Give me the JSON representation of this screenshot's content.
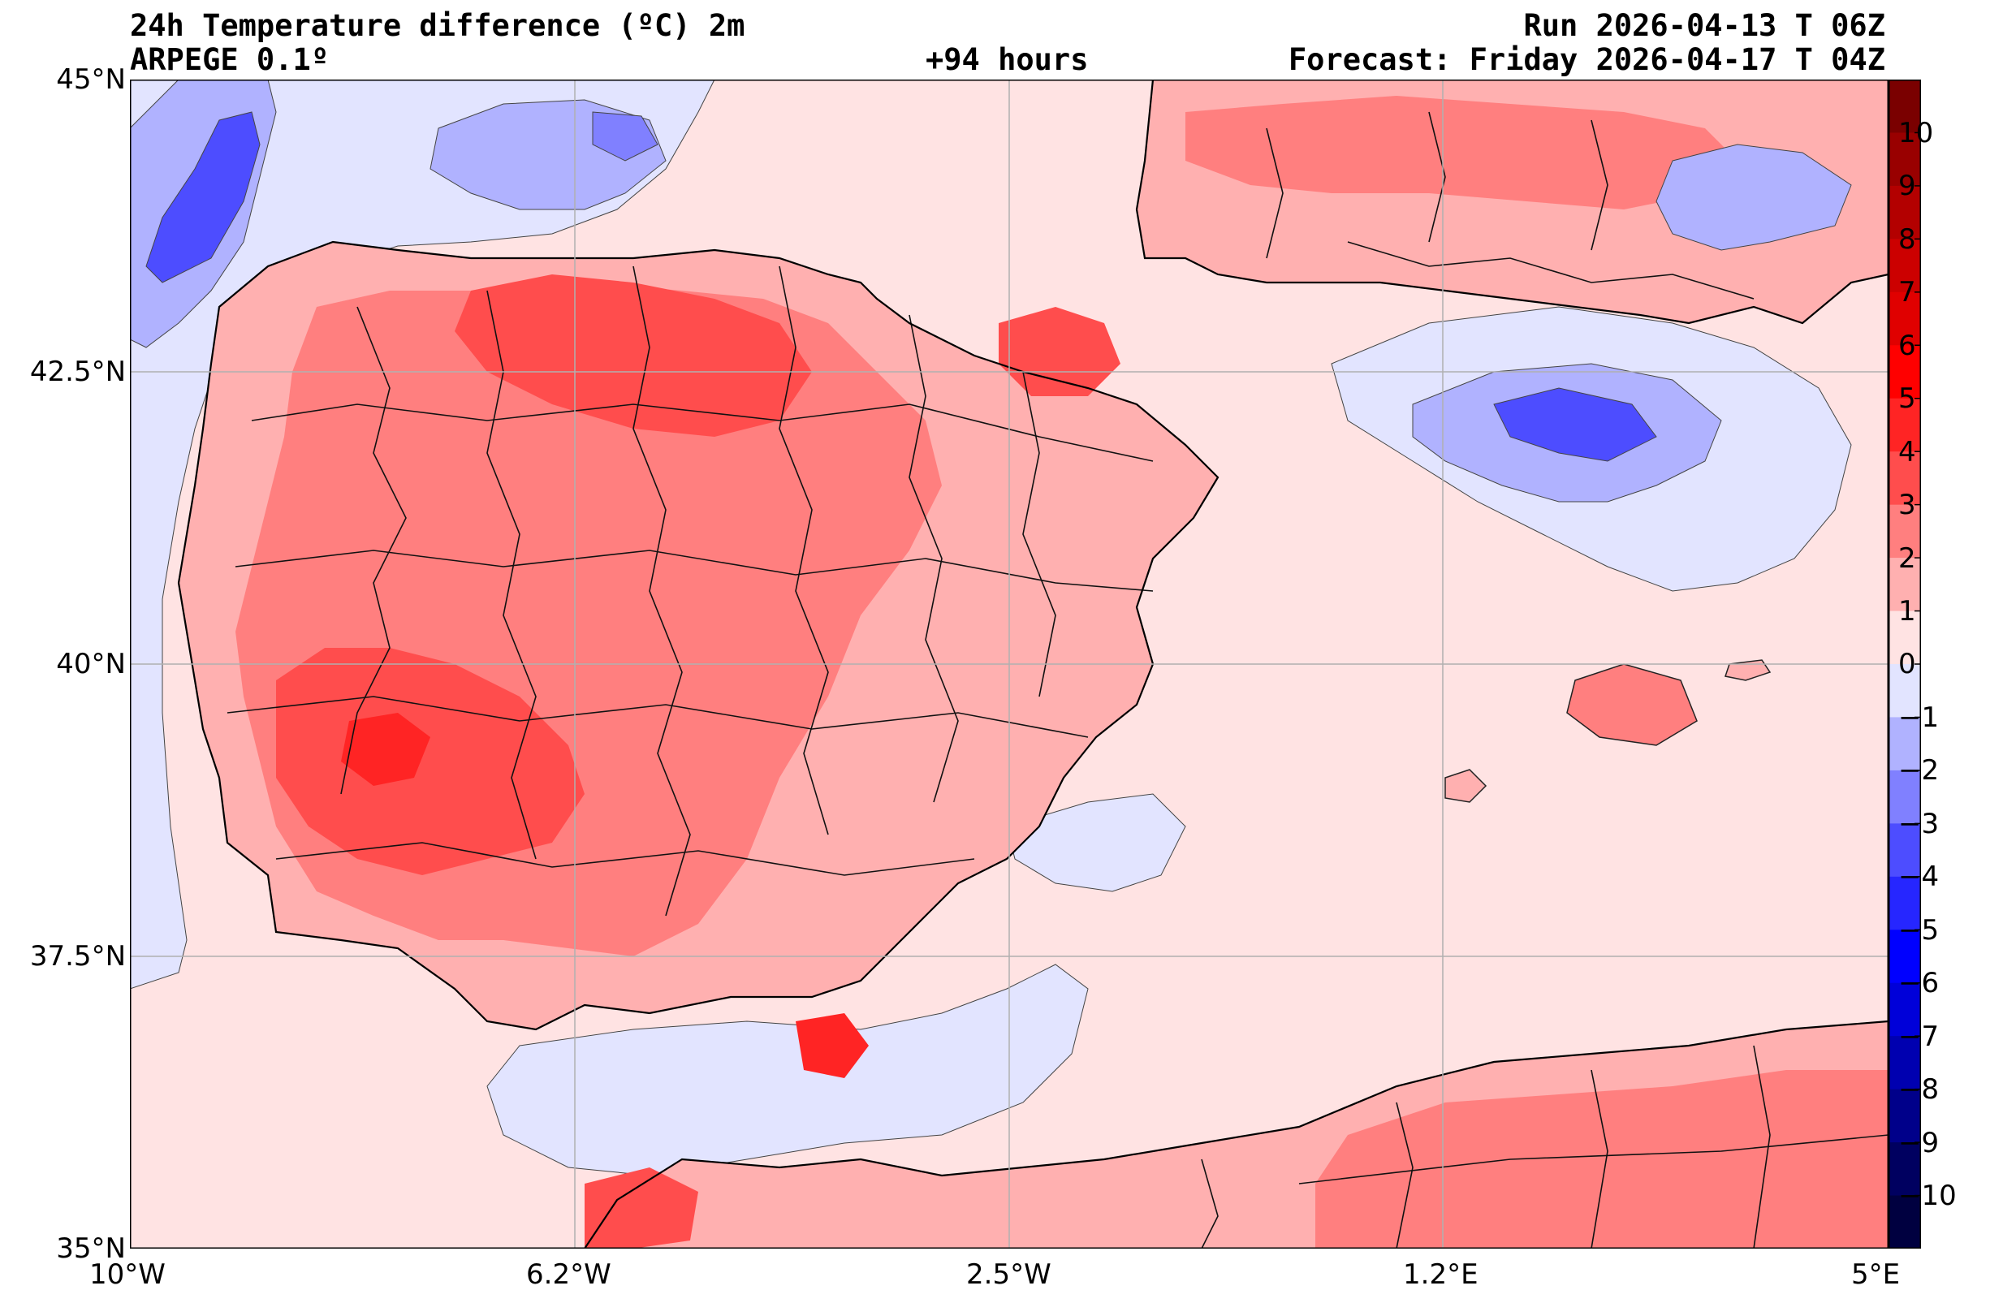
{
  "header": {
    "title": "24h Temperature difference (ºC) 2m",
    "model": "ARPEGE 0.1º",
    "lead": "+94 hours",
    "run": "Run 2026-04-13 T 06Z",
    "forecast": "Forecast: Friday 2026-04-17 T 04Z"
  },
  "axes": {
    "lat_labels": [
      "45°N",
      "42.5°N",
      "40°N",
      "37.5°N",
      "35°N"
    ],
    "lon_labels": [
      "10°W",
      "6.2°W",
      "2.5°W",
      "1.2°E",
      "5°E"
    ]
  },
  "colorbar": {
    "labels": [
      "10",
      "9",
      "8",
      "7",
      "6",
      "5",
      "4",
      "3",
      "2",
      "1",
      "0",
      "−1",
      "−2",
      "−3",
      "−4",
      "−5",
      "−6",
      "−7",
      "−8",
      "−9",
      "−10"
    ],
    "colors": [
      "#7a0000",
      "#990000",
      "#b30000",
      "#cc0000",
      "#e00000",
      "#ff0000",
      "#ff2424",
      "#ff4d4d",
      "#ff7f7f",
      "#ffb0b0",
      "#ffe3e3",
      "#e2e4ff",
      "#b0b2ff",
      "#8080ff",
      "#4d4dff",
      "#2626ff",
      "#0000ff",
      "#0000d9",
      "#0000b0",
      "#00008a",
      "#000060",
      "#000040"
    ]
  },
  "palette": {
    "sea": "#ffe3e3",
    "neg1": "#e2e4ff",
    "neg2": "#b0b2ff",
    "neg3": "#8080ff",
    "neg4": "#4d4dff",
    "pos1": "#ffb0b0",
    "pos2": "#ff7f7f",
    "pos3": "#ff4d4d",
    "pos4": "#ff2424",
    "grid": "#b0b0b0"
  }
}
